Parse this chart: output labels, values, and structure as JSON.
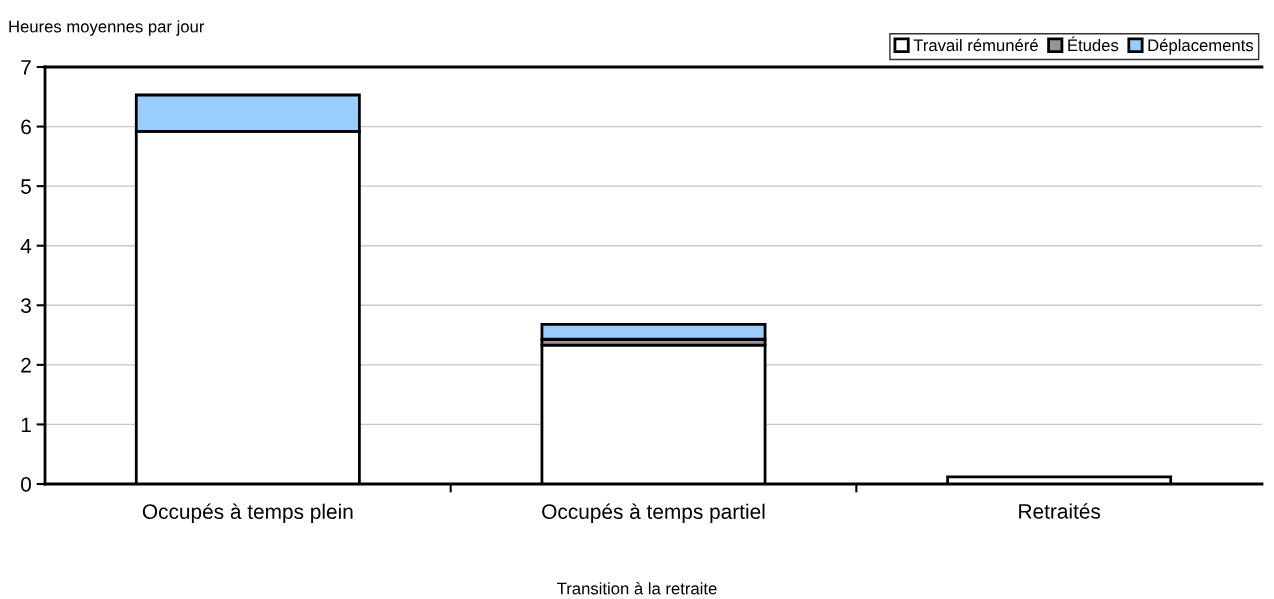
{
  "chart_data": {
    "type": "bar",
    "stacked": true,
    "ylabel": "Heures moyennes par jour",
    "xlabel": "Transition à la retraite",
    "categories": [
      "Occupés à temps plein",
      "Occupés à temps partiel",
      "Retraités"
    ],
    "series": [
      {
        "name": "Travail rémunéré",
        "color": "#ffffff",
        "values": [
          5.92,
          2.33,
          0.12
        ]
      },
      {
        "name": "Études",
        "color": "#969696",
        "values": [
          null,
          0.1,
          null
        ]
      },
      {
        "name": "Déplacements",
        "color": "#99ccff",
        "values": [
          0.61,
          0.25,
          null
        ]
      }
    ],
    "ylim": [
      0,
      7
    ],
    "yticks": [
      0,
      1,
      2,
      3,
      4,
      5,
      6,
      7
    ],
    "grid": "y",
    "legend": "top right"
  }
}
